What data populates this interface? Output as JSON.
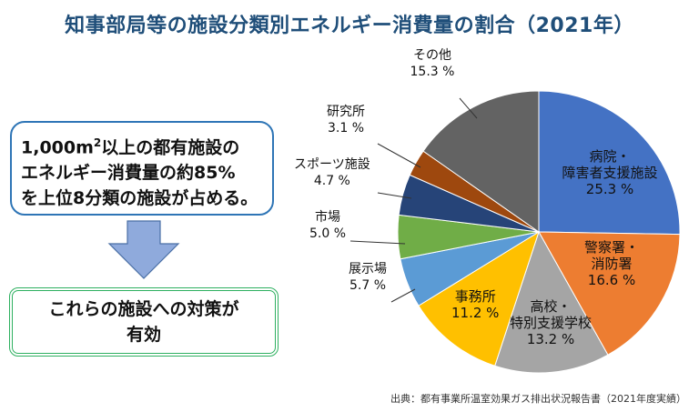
{
  "title": "知事部局等の施設分類別エネルギー消費量の割合（2021年）",
  "box1": {
    "line1_pre": "1,000m",
    "line1_sup": "2",
    "line1_post": "以上の都有施設の",
    "line2": "エネルギー消費量の約85%",
    "line3": "を上位8分類の施設が占める。"
  },
  "box2": {
    "line1": "これらの施設への対策が",
    "line2": "有効"
  },
  "source": "出典：都有事業所温室効果ガス排出状況報告書（2021年度実績）",
  "chart_data": {
    "type": "pie",
    "title": "知事部局等の施設分類別エネルギー消費量の割合（2021年）",
    "start": "top",
    "direction": "clockwise",
    "slices": [
      {
        "label": [
          "病院・",
          "障害者支援施設"
        ],
        "value": 25.3,
        "value_label": "25.3 %",
        "color": "#4472c4"
      },
      {
        "label": [
          "警察署・",
          "消防署"
        ],
        "value": 16.6,
        "value_label": "16.6 %",
        "color": "#ed7d31"
      },
      {
        "label": [
          "高校・",
          "特別支援学校"
        ],
        "value": 13.2,
        "value_label": "13.2 %",
        "color": "#a5a5a5"
      },
      {
        "label": [
          "事務所"
        ],
        "value": 11.2,
        "value_label": "11.2 %",
        "color": "#ffc000"
      },
      {
        "label": [
          "展示場"
        ],
        "value": 5.7,
        "value_label": "5.7 %",
        "color": "#5b9bd5"
      },
      {
        "label": [
          "市場"
        ],
        "value": 5.0,
        "value_label": "5.0 %",
        "color": "#70ad47"
      },
      {
        "label": [
          "スポーツ施設"
        ],
        "value": 4.7,
        "value_label": "4.7 %",
        "color": "#264478"
      },
      {
        "label": [
          "研究所"
        ],
        "value": 3.1,
        "value_label": "3.1 %",
        "color": "#9e480e"
      },
      {
        "label": [
          "その他"
        ],
        "value": 15.3,
        "value_label": "15.3 %",
        "color": "#636363"
      }
    ]
  }
}
